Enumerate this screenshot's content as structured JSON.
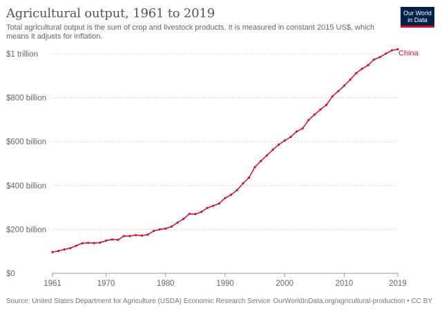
{
  "header": {
    "title": "Agricultural output, 1961 to 2019",
    "subtitle": "Total agricultural output is the sum of crop and livestock products. It is measured in constant 2015 US$, which means it adjusts for inflation."
  },
  "logo": {
    "line1": "Our World",
    "line2": "in Data",
    "background": "#002147",
    "accent": "#c8102e"
  },
  "footer": {
    "source": "Source: United States Department for Agriculture (USDA) Economic Research Service",
    "attribution": "OurWorldInData.org/agricultural-production • CC BY"
  },
  "chart_data": {
    "type": "line",
    "title": "Agricultural output, 1961 to 2019",
    "xlabel": "",
    "ylabel": "",
    "xlim": [
      1961,
      2019
    ],
    "ylim": [
      0,
      1000
    ],
    "unit": "billion constant 2015 US$",
    "grid": "horizontal dashed",
    "x_ticks": [
      {
        "value": 1961,
        "label": "1961"
      },
      {
        "value": 1970,
        "label": "1970"
      },
      {
        "value": 1980,
        "label": "1980"
      },
      {
        "value": 1990,
        "label": "1990"
      },
      {
        "value": 2000,
        "label": "2000"
      },
      {
        "value": 2010,
        "label": "2010"
      },
      {
        "value": 2019,
        "label": "2019"
      }
    ],
    "y_ticks": [
      {
        "value": 0,
        "label": "$0"
      },
      {
        "value": 200,
        "label": "$200 billion"
      },
      {
        "value": 400,
        "label": "$400 billion"
      },
      {
        "value": 600,
        "label": "$600 billion"
      },
      {
        "value": 800,
        "label": "$800 billion"
      },
      {
        "value": 1000,
        "label": "$1 trillion"
      }
    ],
    "series": [
      {
        "name": "China",
        "color": "#c8102e",
        "x": [
          1961,
          1962,
          1963,
          1964,
          1965,
          1966,
          1967,
          1968,
          1969,
          1970,
          1971,
          1972,
          1973,
          1974,
          1975,
          1976,
          1977,
          1978,
          1979,
          1980,
          1981,
          1982,
          1983,
          1984,
          1985,
          1986,
          1987,
          1988,
          1989,
          1990,
          1991,
          1992,
          1993,
          1994,
          1995,
          1996,
          1997,
          1998,
          1999,
          2000,
          2001,
          2002,
          2003,
          2004,
          2005,
          2006,
          2007,
          2008,
          2009,
          2010,
          2011,
          2012,
          2013,
          2014,
          2015,
          2016,
          2017,
          2018,
          2019
        ],
        "values": [
          97,
          102,
          109,
          115,
          126,
          137,
          139,
          138,
          140,
          149,
          154,
          153,
          170,
          170,
          174,
          172,
          176,
          193,
          200,
          204,
          213,
          231,
          248,
          271,
          270,
          280,
          298,
          308,
          318,
          343,
          358,
          379,
          410,
          436,
          484,
          512,
          537,
          563,
          586,
          605,
          621,
          646,
          660,
          698,
          723,
          746,
          767,
          806,
          830,
          855,
          882,
          912,
          932,
          948,
          974,
          985,
          1001,
          1016,
          1021
        ]
      }
    ]
  }
}
